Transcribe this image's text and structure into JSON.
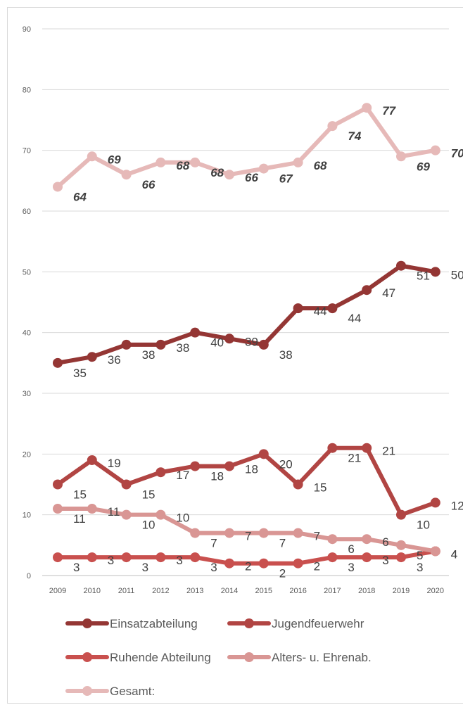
{
  "chart_data": {
    "type": "line",
    "categories": [
      "2009",
      "2010",
      "2011",
      "2012",
      "2013",
      "2014",
      "2015",
      "2016",
      "2017",
      "2018",
      "2019",
      "2020"
    ],
    "ylim": [
      0,
      90
    ],
    "yticks": [
      0,
      10,
      20,
      30,
      40,
      50,
      60,
      70,
      80,
      90
    ],
    "grid": true,
    "legend_position": "bottom",
    "series": [
      {
        "name": "Einsatzabteilung",
        "color": "#943634",
        "label_style": "normal",
        "values": [
          35,
          36,
          38,
          38,
          40,
          39,
          38,
          44,
          44,
          47,
          51,
          50
        ]
      },
      {
        "name": "Jugendfeuerwehr",
        "color": "#b14543",
        "label_style": "normal",
        "values": [
          15,
          19,
          15,
          17,
          18,
          18,
          20,
          15,
          21,
          21,
          10,
          12
        ]
      },
      {
        "name": "Ruhende Abteilung",
        "color": "#c9504e",
        "label_style": "normal",
        "values": [
          3,
          3,
          3,
          3,
          3,
          2,
          2,
          2,
          3,
          3,
          3,
          4
        ]
      },
      {
        "name": "Alters- u. Ehrenab.",
        "color": "#d99694",
        "label_style": "normal",
        "values": [
          11,
          11,
          10,
          10,
          7,
          7,
          7,
          7,
          6,
          6,
          5,
          4
        ]
      },
      {
        "name": "Gesamt:",
        "color": "#e6b9b8",
        "label_style": "bold-italic",
        "values": [
          64,
          69,
          66,
          68,
          68,
          66,
          67,
          68,
          74,
          77,
          69,
          70
        ]
      }
    ]
  }
}
